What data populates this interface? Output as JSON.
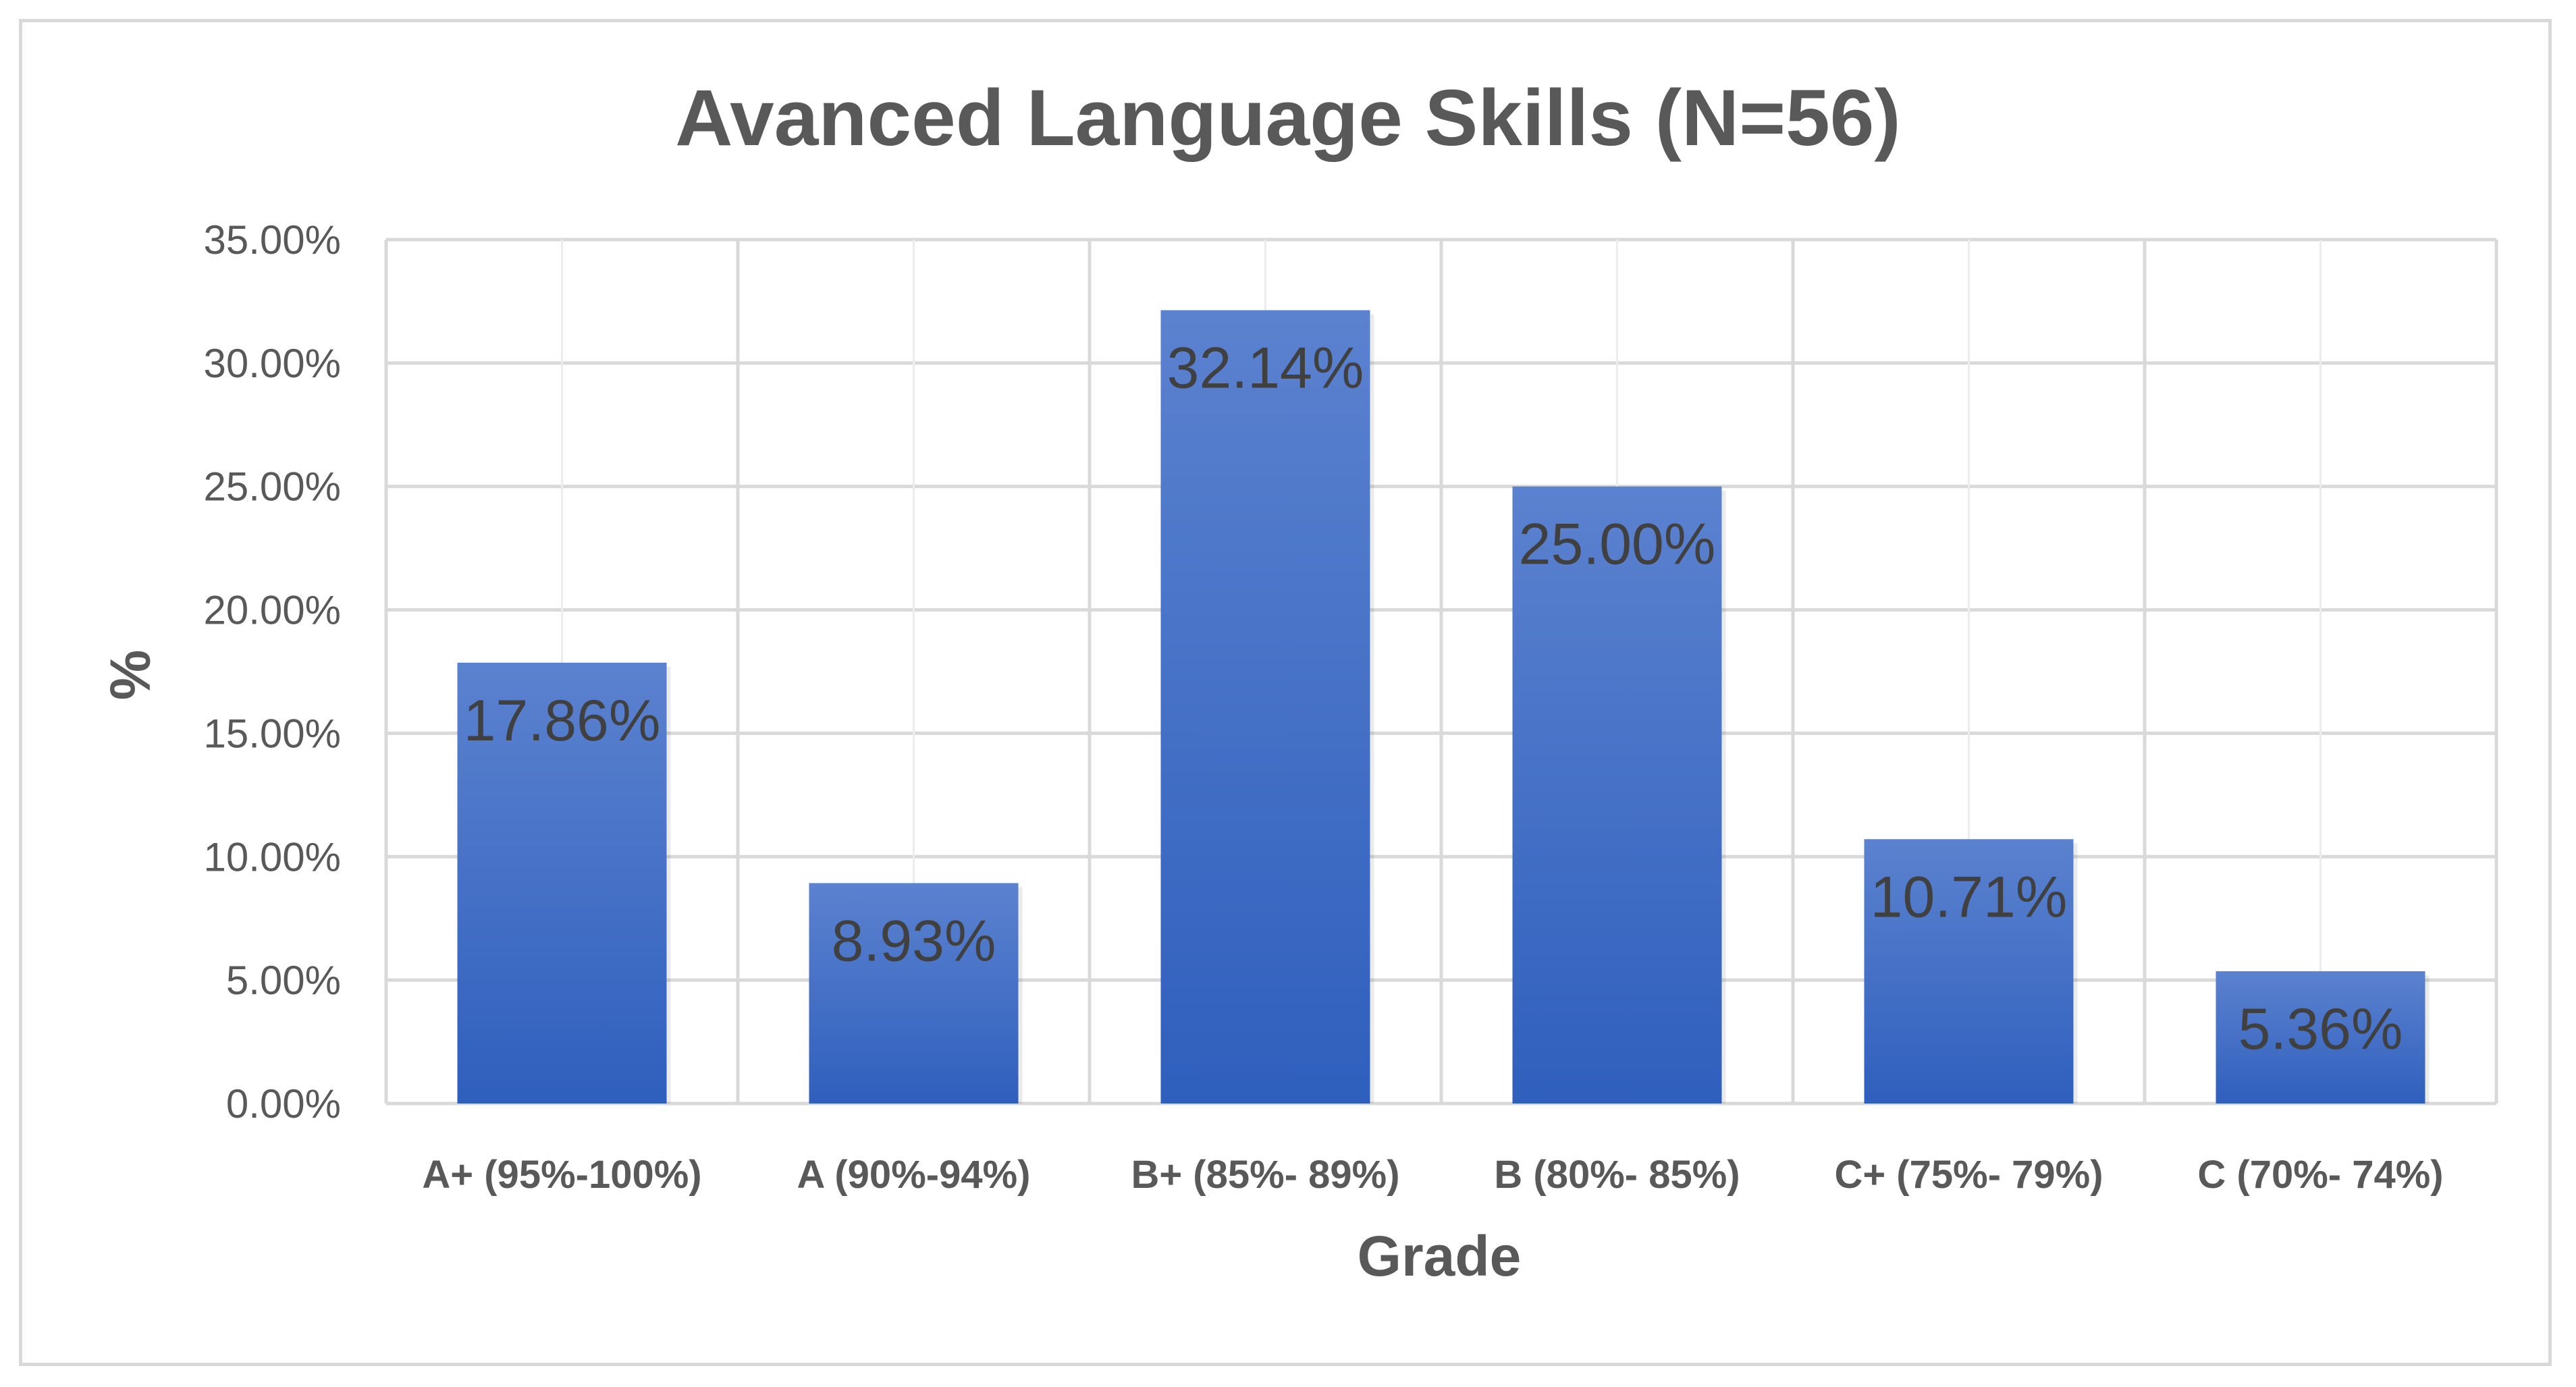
{
  "chart_data": {
    "type": "bar",
    "title": "Avanced Language Skills (N=56)",
    "xlabel": "Grade",
    "ylabel": "%",
    "categories": [
      "A+ (95%-100%)",
      "A (90%-94%)",
      "B+ (85%- 89%)",
      "B (80%- 85%)",
      "C+ (75%- 79%)",
      "C (70%- 74%)"
    ],
    "values": [
      17.86,
      8.93,
      32.14,
      25.0,
      10.71,
      5.36
    ],
    "data_labels": [
      "17.86%",
      "8.93%",
      "32.14%",
      "25.00%",
      "10.71%",
      "5.36%"
    ],
    "y_ticks": [
      "0.00%",
      "5.00%",
      "10.00%",
      "15.00%",
      "20.00%",
      "25.00%",
      "30.00%",
      "35.00%"
    ],
    "ylim": [
      0,
      35
    ],
    "grid": true,
    "legend": "none",
    "colors": {
      "bar_top": "#5b82cf",
      "bar_bottom": "#2f5fbd",
      "grid": "#d9d9d9",
      "text": "#595959"
    }
  }
}
